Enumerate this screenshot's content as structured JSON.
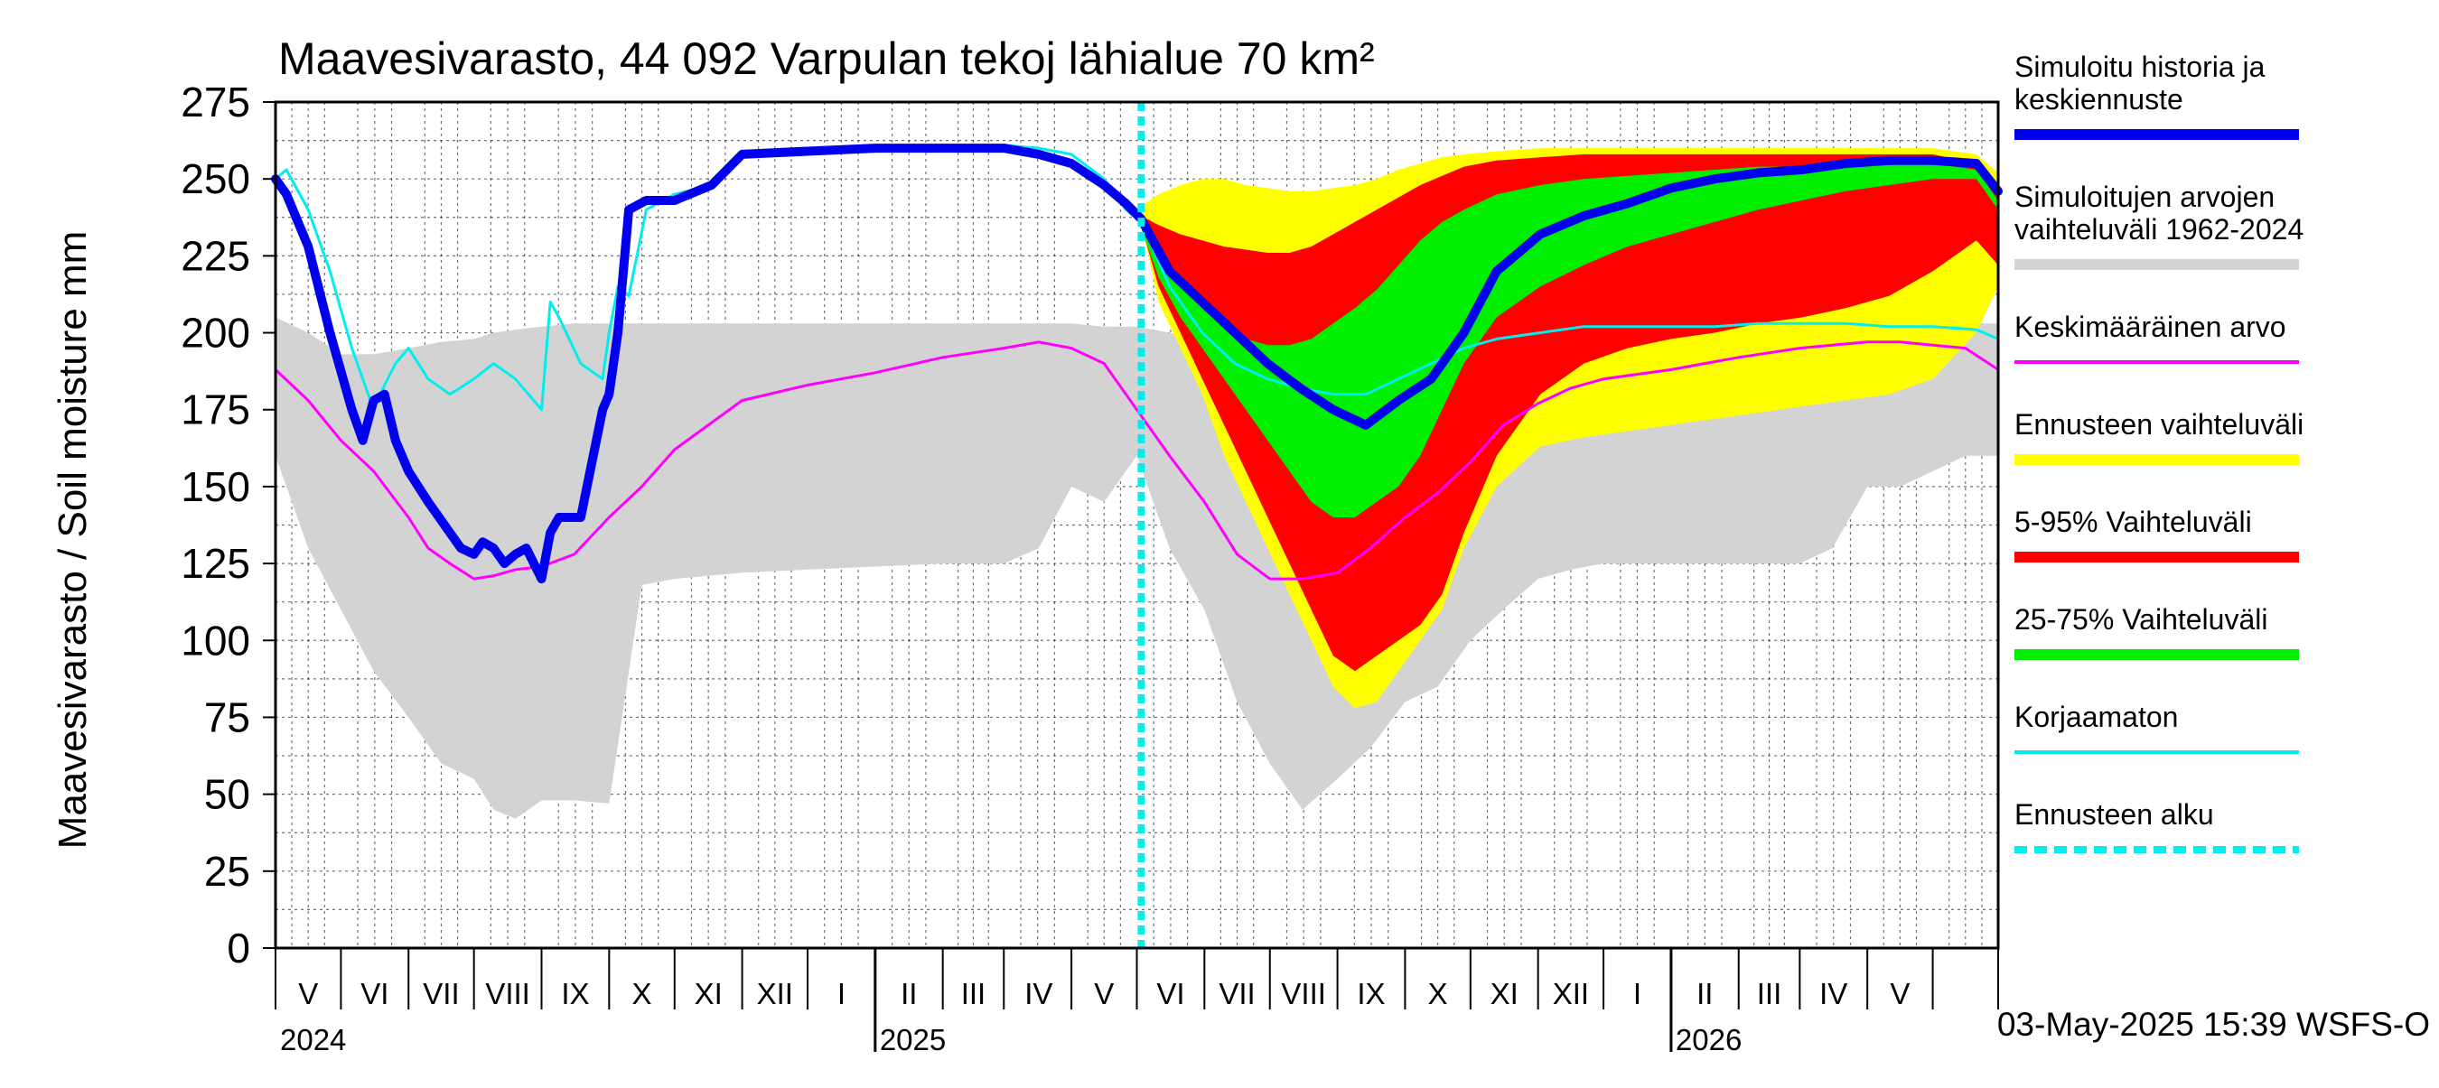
{
  "chart_data": {
    "type": "area",
    "title": "Maavesivarasto, 44 092 Varpulan tekoj lähialue 70 km²",
    "ylabel": "Maavesivarasto / Soil moisture   mm",
    "ylim": [
      0,
      275
    ],
    "yticks": [
      0,
      25,
      50,
      75,
      100,
      125,
      150,
      175,
      200,
      225,
      250,
      275
    ],
    "x_unit": "days since 2024-04-01",
    "xlim": [
      0,
      790
    ],
    "forecast_start": 397,
    "month_boundaries": [
      0,
      30,
      61,
      91,
      122,
      153,
      183,
      214,
      244,
      275,
      306,
      334,
      365,
      395,
      426,
      456,
      487,
      518,
      548,
      579,
      609,
      640,
      671,
      699,
      730,
      760,
      790
    ],
    "year_boundaries": [
      275,
      640
    ],
    "month_labels": [
      {
        "label": "V",
        "x": 15
      },
      {
        "label": "VI",
        "x": 45.5
      },
      {
        "label": "VII",
        "x": 76
      },
      {
        "label": "VIII",
        "x": 106.5
      },
      {
        "label": "IX",
        "x": 137.5
      },
      {
        "label": "X",
        "x": 168
      },
      {
        "label": "XI",
        "x": 198.5
      },
      {
        "label": "XII",
        "x": 229
      },
      {
        "label": "I",
        "x": 259.5
      },
      {
        "label": "II",
        "x": 290.5
      },
      {
        "label": "III",
        "x": 320
      },
      {
        "label": "IV",
        "x": 350
      },
      {
        "label": "V",
        "x": 380
      },
      {
        "label": "VI",
        "x": 410.5
      },
      {
        "label": "VII",
        "x": 441
      },
      {
        "label": "VIII",
        "x": 471.5
      },
      {
        "label": "IX",
        "x": 502.5
      },
      {
        "label": "X",
        "x": 533
      },
      {
        "label": "XI",
        "x": 563.5
      },
      {
        "label": "XII",
        "x": 594
      },
      {
        "label": "I",
        "x": 624.5
      },
      {
        "label": "II",
        "x": 655.5
      },
      {
        "label": "III",
        "x": 685
      },
      {
        "label": "IV",
        "x": 714.5
      },
      {
        "label": "V",
        "x": 745
      }
    ],
    "year_labels": [
      {
        "label": "2024",
        "x": 0
      },
      {
        "label": "2025",
        "x": 275
      },
      {
        "label": "2026",
        "x": 640
      }
    ],
    "timestamp": "03-May-2025 15:39 WSFS-O",
    "legend": [
      {
        "label": "Simuloitu historia ja keskiennuste",
        "color": "#0000ee",
        "style": "thick"
      },
      {
        "label": "Simuloitujen arvojen vaihteluväli 1962-2024",
        "color": "#d3d3d3",
        "style": "thick"
      },
      {
        "label": "Keskimääräinen arvo",
        "color": "#ff00ff",
        "style": "thin"
      },
      {
        "label": "Ennusteen vaihteluväli",
        "color": "#ffff00",
        "style": "thick"
      },
      {
        "label": "5-95% Vaihteluväli",
        "color": "#ff0000",
        "style": "thick"
      },
      {
        "label": "25-75% Vaihteluväli",
        "color": "#00ee00",
        "style": "thick"
      },
      {
        "label": "Korjaamaton",
        "color": "#00eeee",
        "style": "thin"
      },
      {
        "label": "Ennusteen alku",
        "color": "#00eeee",
        "style": "dashed"
      }
    ],
    "series": [
      {
        "name": "Simuloitujen arvojen vaihteluväli 1962-2024",
        "type": "band",
        "color": "#d3d3d3",
        "x": [
          0,
          15,
          30,
          45,
          61,
          76,
          91,
          100,
          110,
          122,
          137,
          153,
          168,
          183,
          214,
          244,
          275,
          306,
          334,
          350,
          365,
          380,
          395,
          410,
          426,
          441,
          456,
          471,
          487,
          502,
          518,
          533,
          548,
          563,
          579,
          594,
          609,
          640,
          671,
          699,
          714,
          730,
          745,
          760,
          775,
          790
        ],
        "upper": [
          205,
          200,
          193,
          193,
          195,
          197,
          198,
          200,
          201,
          202,
          203,
          203,
          203,
          203,
          203,
          203,
          203,
          203,
          203,
          203,
          203,
          202,
          202,
          200,
          198,
          197,
          197,
          198,
          199,
          200,
          201,
          201,
          201,
          201,
          202,
          202,
          203,
          203,
          203,
          203,
          203,
          203,
          203,
          203,
          203,
          203
        ],
        "lower": [
          160,
          130,
          110,
          90,
          75,
          60,
          55,
          45,
          42,
          48,
          48,
          47,
          118,
          120,
          122,
          123,
          124,
          125,
          125,
          130,
          150,
          145,
          160,
          130,
          110,
          80,
          60,
          45,
          55,
          65,
          80,
          85,
          100,
          110,
          120,
          123,
          125,
          125,
          125,
          125,
          130,
          150,
          150,
          155,
          160,
          160
        ]
      },
      {
        "name": "Ennusteen vaihteluväli",
        "type": "band",
        "color": "#ffff00",
        "x": [
          397,
          405,
          415,
          425,
          435,
          445,
          455,
          465,
          475,
          485,
          495,
          505,
          515,
          525,
          535,
          545,
          560,
          580,
          600,
          620,
          640,
          660,
          680,
          700,
          720,
          740,
          760,
          780,
          790
        ],
        "upper": [
          241,
          245,
          248,
          250,
          250,
          248,
          247,
          246,
          246,
          247,
          248,
          250,
          253,
          255,
          257,
          258,
          259,
          260,
          260,
          260,
          260,
          260,
          260,
          260,
          260,
          260,
          260,
          258,
          252
        ],
        "lower": [
          236,
          210,
          195,
          180,
          160,
          145,
          130,
          115,
          100,
          85,
          78,
          80,
          90,
          100,
          110,
          130,
          150,
          163,
          166,
          168,
          170,
          172,
          174,
          176,
          178,
          180,
          185,
          200,
          215
        ]
      },
      {
        "name": "5-95% Vaihteluväli",
        "type": "band",
        "color": "#ff0000",
        "x": [
          397,
          405,
          415,
          425,
          435,
          445,
          455,
          465,
          475,
          485,
          495,
          505,
          515,
          525,
          535,
          545,
          560,
          580,
          600,
          620,
          640,
          660,
          680,
          700,
          720,
          740,
          760,
          780,
          790
        ],
        "upper": [
          238,
          235,
          232,
          230,
          228,
          227,
          226,
          226,
          228,
          232,
          236,
          240,
          244,
          248,
          251,
          254,
          256,
          257,
          258,
          258,
          258,
          258,
          258,
          258,
          258,
          258,
          258,
          255,
          245
        ],
        "lower": [
          235,
          215,
          200,
          185,
          170,
          155,
          140,
          125,
          110,
          95,
          90,
          95,
          100,
          105,
          115,
          135,
          160,
          180,
          190,
          195,
          198,
          200,
          203,
          205,
          208,
          212,
          220,
          230,
          222
        ]
      },
      {
        "name": "25-75% Vaihteluväli",
        "type": "band",
        "color": "#00ee00",
        "x": [
          397,
          405,
          415,
          425,
          435,
          445,
          455,
          465,
          475,
          485,
          495,
          505,
          515,
          525,
          535,
          545,
          560,
          580,
          600,
          620,
          640,
          660,
          680,
          700,
          720,
          740,
          760,
          780,
          790
        ],
        "upper": [
          236,
          225,
          215,
          208,
          202,
          198,
          196,
          196,
          198,
          203,
          208,
          214,
          222,
          230,
          236,
          240,
          245,
          248,
          250,
          251,
          252,
          253,
          254,
          254,
          255,
          255,
          255,
          253,
          243
        ],
        "lower": [
          234,
          218,
          205,
          195,
          185,
          175,
          165,
          155,
          145,
          140,
          140,
          145,
          150,
          160,
          175,
          190,
          205,
          215,
          222,
          228,
          232,
          236,
          240,
          243,
          246,
          248,
          250,
          250,
          240
        ]
      },
      {
        "name": "Keskimääräinen arvo",
        "type": "line",
        "color": "#ff00ff",
        "width": 3,
        "x": [
          0,
          15,
          30,
          45,
          61,
          70,
          80,
          91,
          100,
          110,
          122,
          137,
          153,
          168,
          183,
          214,
          244,
          275,
          306,
          334,
          350,
          365,
          380,
          395,
          410,
          426,
          441,
          456,
          471,
          487,
          502,
          518,
          533,
          548,
          563,
          579,
          594,
          609,
          640,
          671,
          699,
          714,
          730,
          745,
          760,
          775,
          790
        ],
        "values": [
          188,
          178,
          165,
          155,
          140,
          130,
          125,
          120,
          121,
          123,
          124,
          128,
          140,
          150,
          162,
          178,
          183,
          187,
          192,
          195,
          197,
          195,
          190,
          175,
          160,
          145,
          128,
          120,
          120,
          122,
          130,
          140,
          148,
          158,
          170,
          177,
          182,
          185,
          188,
          192,
          195,
          196,
          197,
          197,
          196,
          195,
          188
        ]
      },
      {
        "name": "Korjaamaton",
        "type": "line",
        "color": "#00eeee",
        "width": 3,
        "x": [
          0,
          5,
          15,
          25,
          35,
          40,
          45,
          50,
          55,
          61,
          70,
          80,
          91,
          100,
          110,
          122,
          126,
          130,
          140,
          150,
          153,
          157,
          162,
          170,
          183,
          200,
          214,
          244,
          275,
          306,
          334,
          350,
          365,
          380,
          390,
          397,
          410,
          425,
          440,
          455,
          470,
          485,
          500,
          515,
          530,
          545,
          560,
          580,
          600,
          620,
          640,
          660,
          680,
          700,
          720,
          740,
          760,
          780,
          790
        ],
        "values": [
          250,
          253,
          240,
          220,
          195,
          185,
          175,
          183,
          190,
          195,
          185,
          180,
          185,
          190,
          185,
          175,
          210,
          205,
          190,
          185,
          200,
          215,
          212,
          240,
          245,
          248,
          259,
          260,
          260,
          261,
          261,
          260,
          258,
          250,
          240,
          236,
          215,
          200,
          190,
          185,
          182,
          180,
          180,
          185,
          190,
          195,
          198,
          200,
          202,
          202,
          202,
          202,
          203,
          203,
          203,
          202,
          202,
          201,
          198
        ]
      },
      {
        "name": "Simuloitu historia ja keskiennuste",
        "type": "line",
        "color": "#0000ee",
        "width": 10,
        "x": [
          0,
          5,
          15,
          25,
          35,
          40,
          45,
          50,
          55,
          61,
          70,
          80,
          85,
          91,
          95,
          100,
          105,
          110,
          115,
          122,
          126,
          130,
          140,
          150,
          153,
          157,
          162,
          170,
          183,
          200,
          214,
          244,
          275,
          306,
          334,
          350,
          365,
          380,
          390,
          397,
          410,
          425,
          440,
          455,
          470,
          485,
          500,
          515,
          530,
          545,
          560,
          580,
          600,
          620,
          640,
          660,
          680,
          700,
          720,
          740,
          760,
          780,
          790
        ],
        "values": [
          250,
          245,
          228,
          200,
          175,
          165,
          178,
          180,
          165,
          155,
          145,
          135,
          130,
          128,
          132,
          130,
          125,
          128,
          130,
          120,
          135,
          140,
          140,
          175,
          180,
          200,
          240,
          243,
          243,
          248,
          258,
          259,
          260,
          260,
          260,
          258,
          255,
          248,
          242,
          237,
          220,
          210,
          200,
          190,
          182,
          175,
          170,
          178,
          185,
          200,
          220,
          232,
          238,
          242,
          247,
          250,
          252,
          253,
          255,
          256,
          256,
          255,
          246
        ]
      }
    ]
  }
}
